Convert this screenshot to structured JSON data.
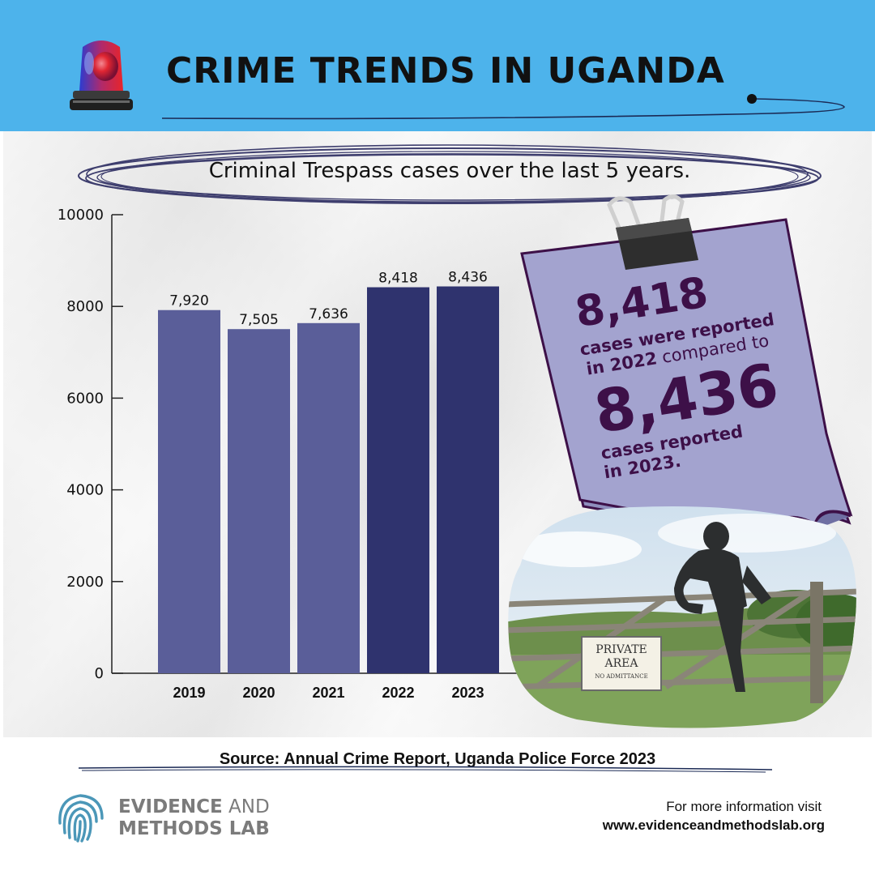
{
  "header": {
    "title": "CRIME TRENDS IN UGANDA",
    "background": "#4db3eb"
  },
  "subtitle": "Criminal Trespass  cases over the last 5 years.",
  "chart_data": {
    "type": "bar",
    "categories": [
      "2019",
      "2020",
      "2021",
      "2022",
      "2023"
    ],
    "values": [
      7920,
      7505,
      7636,
      8418,
      8436
    ],
    "value_labels": [
      "7,920",
      "7,505",
      "7,636",
      "8,418",
      "8,436"
    ],
    "ylim": [
      0,
      10000
    ],
    "yticks": [
      0,
      2000,
      4000,
      6000,
      8000,
      10000
    ],
    "ytick_labels": [
      "0",
      "2000",
      "4000",
      "6000",
      "8000",
      "10000"
    ],
    "bar_colors": [
      "#5a5e99",
      "#5a5e99",
      "#5a5e99",
      "#2f336e",
      "#2f336e"
    ],
    "grid": false,
    "legend": "none"
  },
  "callout": {
    "number_1": "8,418",
    "line_1": "cases were reported",
    "line_2_bold": "in 2022",
    "line_2_rest": " compared to",
    "number_2": "8,436",
    "line_3": "cases reported",
    "line_4": "in 2023.",
    "note_color": "#a3a3cf",
    "text_color": "#3d1048"
  },
  "photo": {
    "sign_line_1": "PRIVATE",
    "sign_line_2": "AREA",
    "sign_line_3": "NO ADMITTANCE"
  },
  "source": "Source: Annual Crime Report, Uganda Police Force 2023",
  "footer": {
    "brand_bold_1": "EVIDENCE",
    "brand_light_1": " AND",
    "brand_line_2": "METHODS LAB",
    "more_info": "For more information visit",
    "url": "www.evidenceandmethodslab.org",
    "logo_icon": "fingerprint-icon"
  }
}
